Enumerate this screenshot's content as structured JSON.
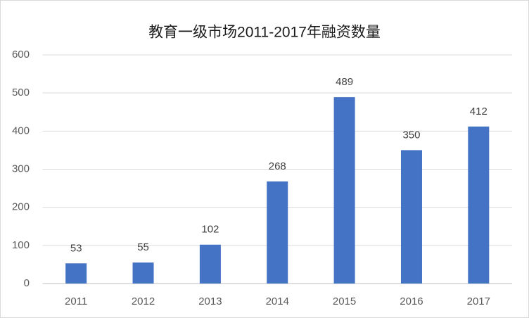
{
  "chart_data": {
    "type": "bar",
    "title": "教育一级市场2011-2017年融资数量",
    "categories": [
      "2011",
      "2012",
      "2013",
      "2014",
      "2015",
      "2016",
      "2017"
    ],
    "values": [
      53,
      55,
      102,
      268,
      489,
      350,
      412
    ],
    "color": "#4472c4",
    "ylim": [
      0,
      600
    ],
    "yticks": [
      0,
      100,
      200,
      300,
      400,
      500,
      600
    ],
    "grid": true
  }
}
